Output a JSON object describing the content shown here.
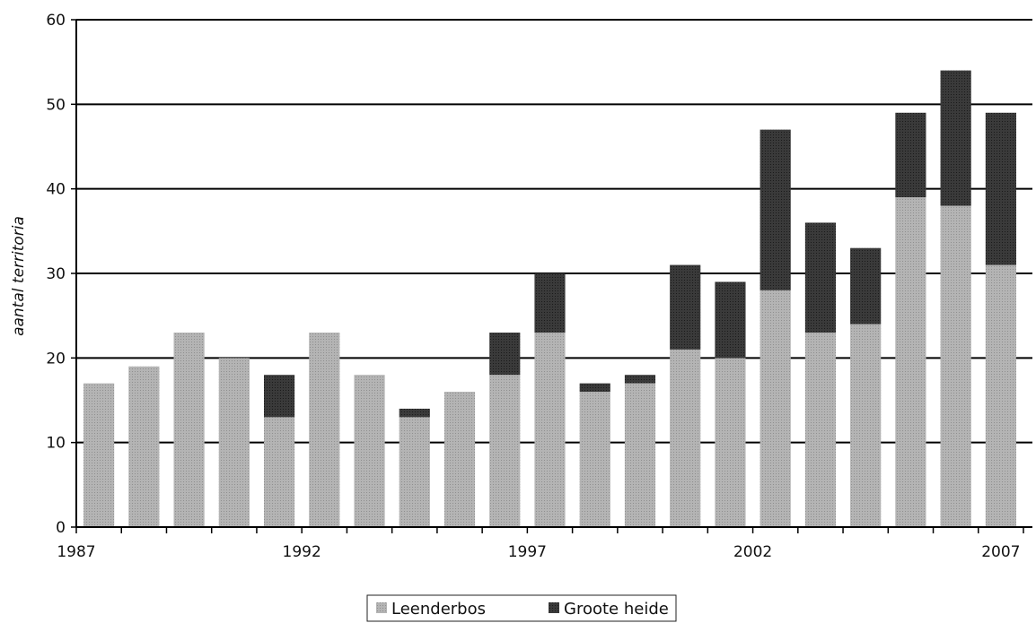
{
  "chart_data": {
    "type": "bar",
    "stacked": true,
    "title": "",
    "xlabel": "",
    "ylabel": "aantal territoria",
    "ylim": [
      0,
      60
    ],
    "yticks": [
      0,
      10,
      20,
      30,
      40,
      50,
      60
    ],
    "grid": true,
    "legend_position": "bottom-center",
    "categories": [
      "1987",
      "1988",
      "1989",
      "1990",
      "1991",
      "1992",
      "1993",
      "1994",
      "1995",
      "1996",
      "1997",
      "1998",
      "1999",
      "2000",
      "2001",
      "2002",
      "2003",
      "2004",
      "2005",
      "2006",
      "2007"
    ],
    "x_tick_labels": [
      "1987",
      "1992",
      "1997",
      "2002",
      "2007"
    ],
    "series": [
      {
        "name": "Leenderbos",
        "color": "#a9a9a9",
        "values": [
          17,
          19,
          23,
          20,
          13,
          23,
          18,
          13,
          16,
          18,
          23,
          16,
          17,
          21,
          20,
          28,
          23,
          24,
          39,
          38,
          31
        ]
      },
      {
        "name": "Groote heide",
        "color": "#333333",
        "values": [
          0,
          0,
          0,
          0,
          5,
          0,
          0,
          1,
          0,
          5,
          7,
          1,
          1,
          10,
          9,
          19,
          13,
          9,
          10,
          16,
          18
        ]
      }
    ]
  }
}
